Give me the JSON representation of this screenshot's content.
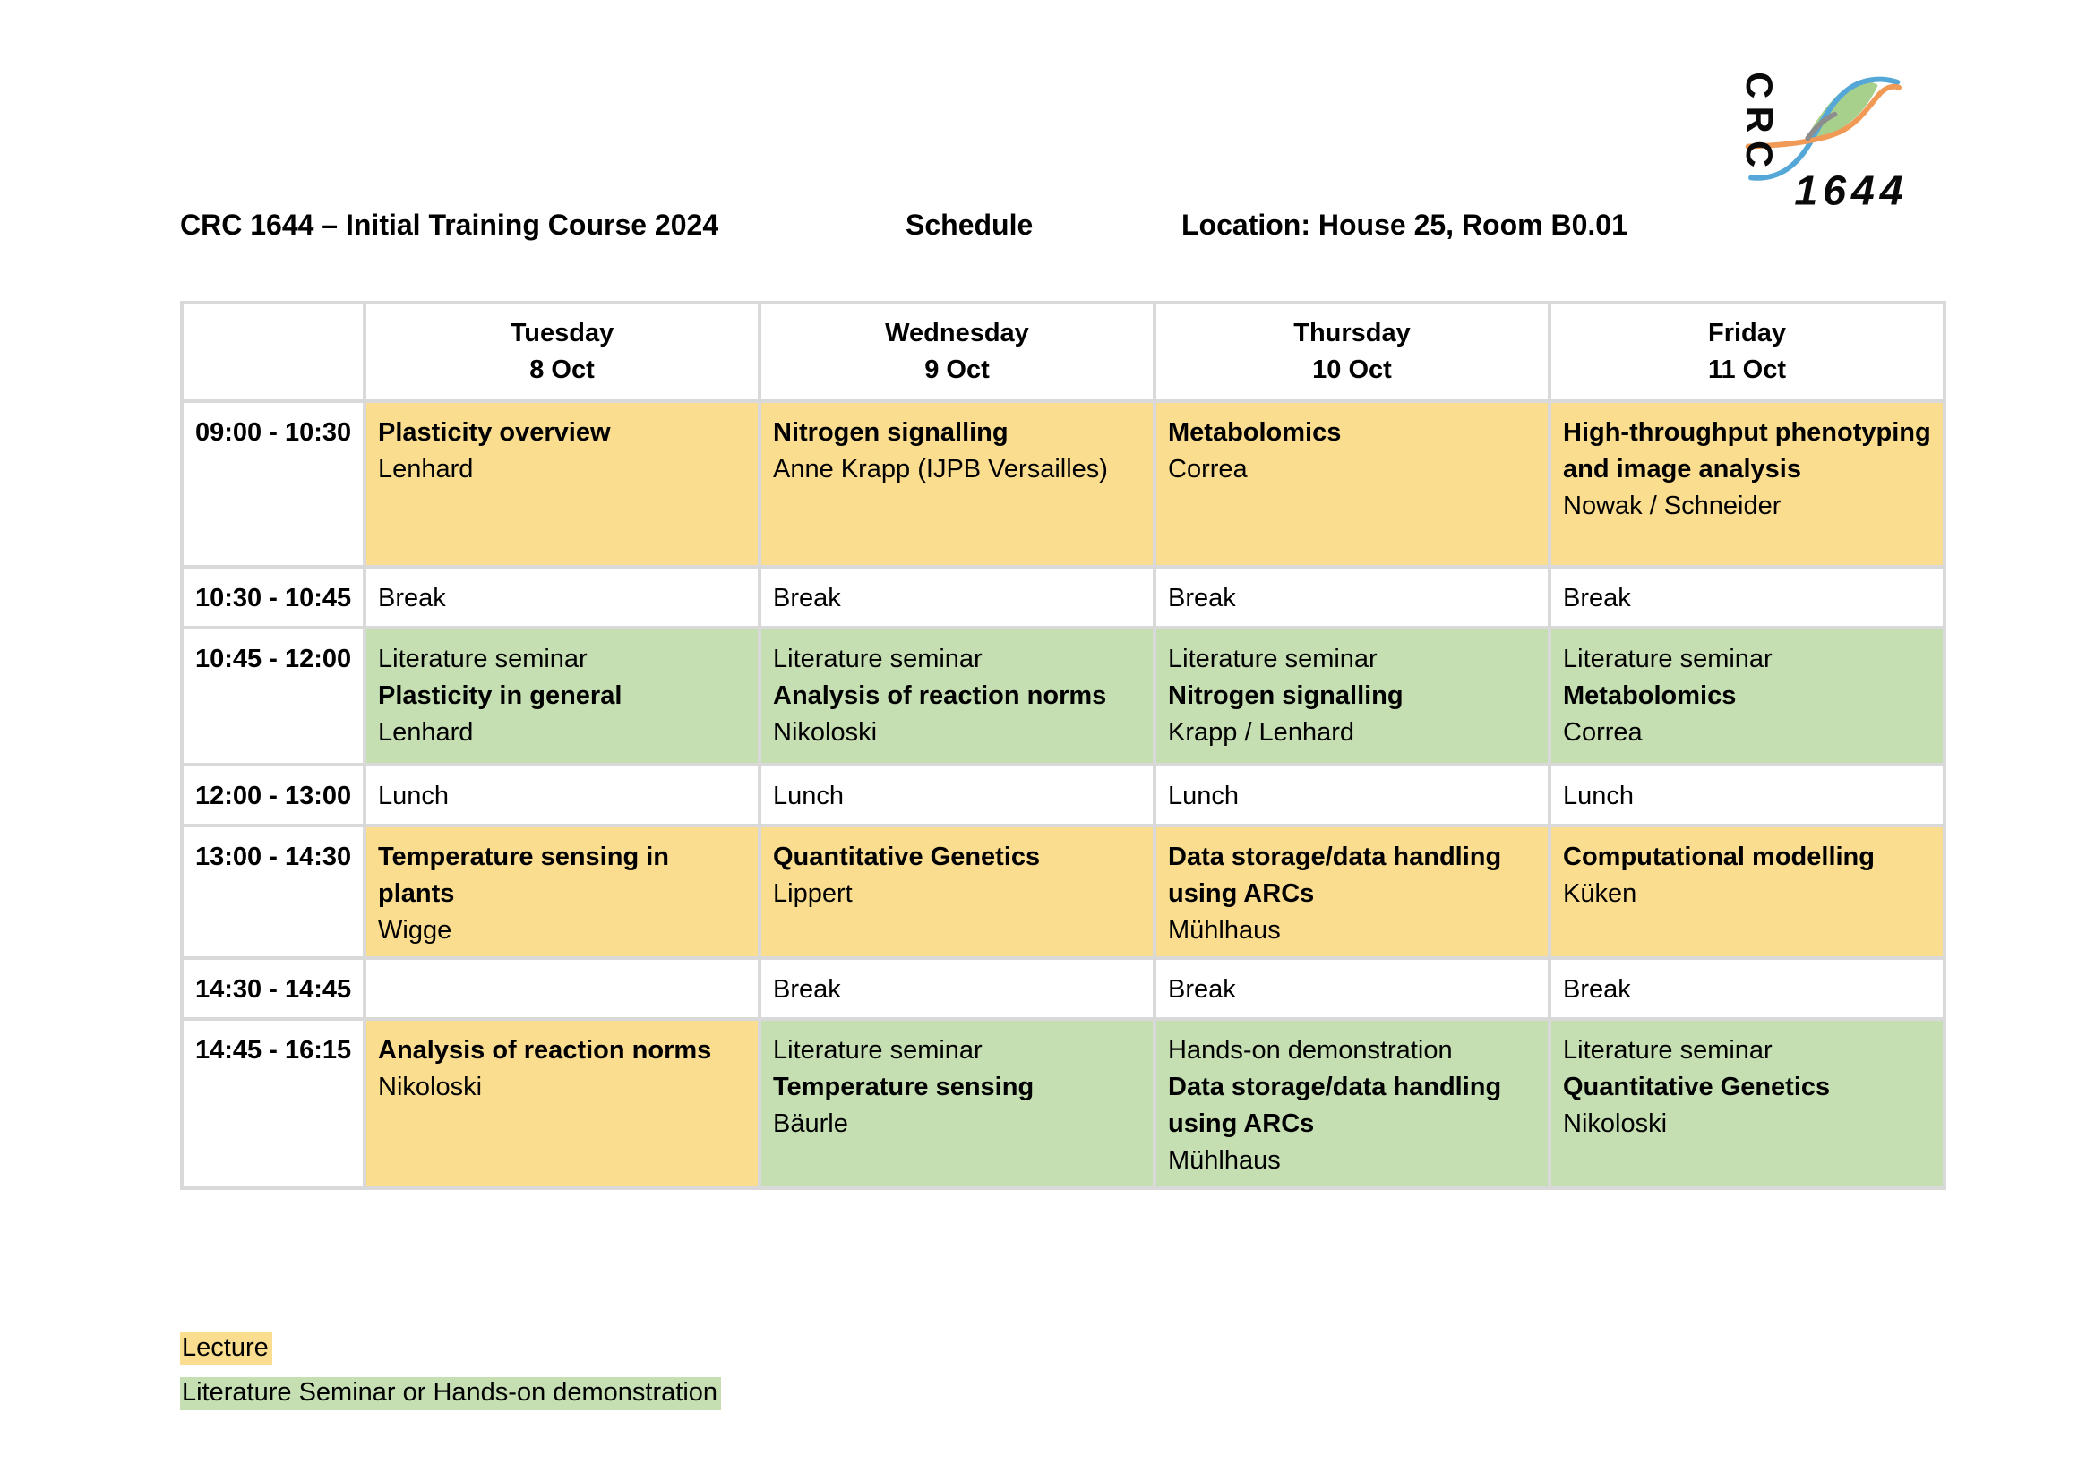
{
  "header": {
    "title": "CRC 1644 – Initial Training Course 2024",
    "schedule_label": "Schedule",
    "location": "Location: House 25, Room B0.01"
  },
  "logo": {
    "acronym": "CRC",
    "number": "1644"
  },
  "colors": {
    "lecture": "#FADD8E",
    "seminar": "#C5DFB2",
    "grid": "#D9D9D9",
    "logo_blue": "#54A7D6",
    "logo_orange": "#F09A55",
    "logo_leaf": "#9DCB81",
    "logo_gray": "#8D8D8D",
    "text": "#000000"
  },
  "table": {
    "days": [
      {
        "name": "Tuesday",
        "date": "8 Oct"
      },
      {
        "name": "Wednesday",
        "date": "9 Oct"
      },
      {
        "name": "Thursday",
        "date": "10 Oct"
      },
      {
        "name": "Friday",
        "date": "11 Oct"
      }
    ],
    "rows": [
      {
        "time": "09:00 - 10:30",
        "cells": [
          {
            "bg": "lecture",
            "lines": [
              {
                "text": "Plasticity overview",
                "bold": true
              },
              {
                "text": "Lenhard",
                "bold": false
              }
            ]
          },
          {
            "bg": "lecture",
            "lines": [
              {
                "text": "Nitrogen signalling",
                "bold": true
              },
              {
                "text": "Anne Krapp (IJPB Versailles)",
                "bold": false
              }
            ]
          },
          {
            "bg": "lecture",
            "lines": [
              {
                "text": "Metabolomics",
                "bold": true
              },
              {
                "text": "Correa",
                "bold": false
              }
            ]
          },
          {
            "bg": "lecture",
            "lines": [
              {
                "text": "High-throughput phenotyping and image analysis",
                "bold": true
              },
              {
                "text": "Nowak / Schneider",
                "bold": false
              }
            ]
          }
        ]
      },
      {
        "time": "10:30 - 10:45",
        "cells": [
          {
            "bg": "none",
            "lines": [
              {
                "text": "Break",
                "bold": false
              }
            ]
          },
          {
            "bg": "none",
            "lines": [
              {
                "text": "Break",
                "bold": false
              }
            ]
          },
          {
            "bg": "none",
            "lines": [
              {
                "text": "Break",
                "bold": false
              }
            ]
          },
          {
            "bg": "none",
            "lines": [
              {
                "text": "Break",
                "bold": false
              }
            ]
          }
        ]
      },
      {
        "time": "10:45 - 12:00",
        "cells": [
          {
            "bg": "seminar",
            "lines": [
              {
                "text": "Literature seminar",
                "bold": false
              },
              {
                "text": "Plasticity in general",
                "bold": true
              },
              {
                "text": "Lenhard",
                "bold": false
              }
            ]
          },
          {
            "bg": "seminar",
            "lines": [
              {
                "text": "Literature seminar",
                "bold": false
              },
              {
                "text": "Analysis of reaction norms",
                "bold": true
              },
              {
                "text": "Nikoloski",
                "bold": false
              }
            ]
          },
          {
            "bg": "seminar",
            "lines": [
              {
                "text": "Literature seminar",
                "bold": false
              },
              {
                "text": "Nitrogen signalling",
                "bold": true
              },
              {
                "text": "Krapp / Lenhard",
                "bold": false
              }
            ]
          },
          {
            "bg": "seminar",
            "lines": [
              {
                "text": "Literature seminar",
                "bold": false
              },
              {
                "text": "Metabolomics",
                "bold": true
              },
              {
                "text": "Correa",
                "bold": false
              }
            ]
          }
        ]
      },
      {
        "time": "12:00 - 13:00",
        "cells": [
          {
            "bg": "none",
            "lines": [
              {
                "text": "Lunch",
                "bold": false
              }
            ]
          },
          {
            "bg": "none",
            "lines": [
              {
                "text": "Lunch",
                "bold": false
              }
            ]
          },
          {
            "bg": "none",
            "lines": [
              {
                "text": "Lunch",
                "bold": false
              }
            ]
          },
          {
            "bg": "none",
            "lines": [
              {
                "text": "Lunch",
                "bold": false
              }
            ]
          }
        ]
      },
      {
        "time": "13:00 - 14:30",
        "cells": [
          {
            "bg": "lecture",
            "lines": [
              {
                "text": "Temperature sensing in plants",
                "bold": true
              },
              {
                "text": "Wigge",
                "bold": false
              }
            ]
          },
          {
            "bg": "lecture",
            "lines": [
              {
                "text": "Quantitative Genetics",
                "bold": true
              },
              {
                "text": "Lippert",
                "bold": false
              }
            ]
          },
          {
            "bg": "lecture",
            "lines": [
              {
                "text": "Data storage/data handling using ARCs",
                "bold": true
              },
              {
                "text": "Mühlhaus",
                "bold": false
              }
            ]
          },
          {
            "bg": "lecture",
            "lines": [
              {
                "text": "Computational modelling",
                "bold": true
              },
              {
                "text": "Küken",
                "bold": false
              }
            ]
          }
        ]
      },
      {
        "time": "14:30 - 14:45",
        "cells": [
          {
            "bg": "none",
            "lines": []
          },
          {
            "bg": "none",
            "lines": [
              {
                "text": "Break",
                "bold": false
              }
            ]
          },
          {
            "bg": "none",
            "lines": [
              {
                "text": "Break",
                "bold": false
              }
            ]
          },
          {
            "bg": "none",
            "lines": [
              {
                "text": "Break",
                "bold": false
              }
            ]
          }
        ]
      },
      {
        "time": "14:45 - 16:15",
        "cells": [
          {
            "bg": "lecture",
            "lines": [
              {
                "text": "Analysis of reaction norms",
                "bold": true
              },
              {
                "text": "Nikoloski",
                "bold": false
              }
            ]
          },
          {
            "bg": "seminar",
            "lines": [
              {
                "text": "Literature seminar",
                "bold": false
              },
              {
                "text": "Temperature sensing",
                "bold": true
              },
              {
                "text": "Bäurle",
                "bold": false
              }
            ]
          },
          {
            "bg": "seminar",
            "lines": [
              {
                "text": "Hands-on demonstration",
                "bold": false
              },
              {
                "text": "Data storage/data handling using ARCs",
                "bold": true
              },
              {
                "text": "Mühlhaus",
                "bold": false
              }
            ]
          },
          {
            "bg": "seminar",
            "lines": [
              {
                "text": "Literature seminar",
                "bold": false
              },
              {
                "text": "Quantitative Genetics",
                "bold": true
              },
              {
                "text": "Nikoloski",
                "bold": false
              }
            ]
          }
        ]
      }
    ]
  },
  "legend": {
    "items": [
      {
        "label": "Lecture",
        "type": "lecture"
      },
      {
        "label": "Literature Seminar or Hands-on demonstration",
        "type": "seminar"
      }
    ]
  }
}
